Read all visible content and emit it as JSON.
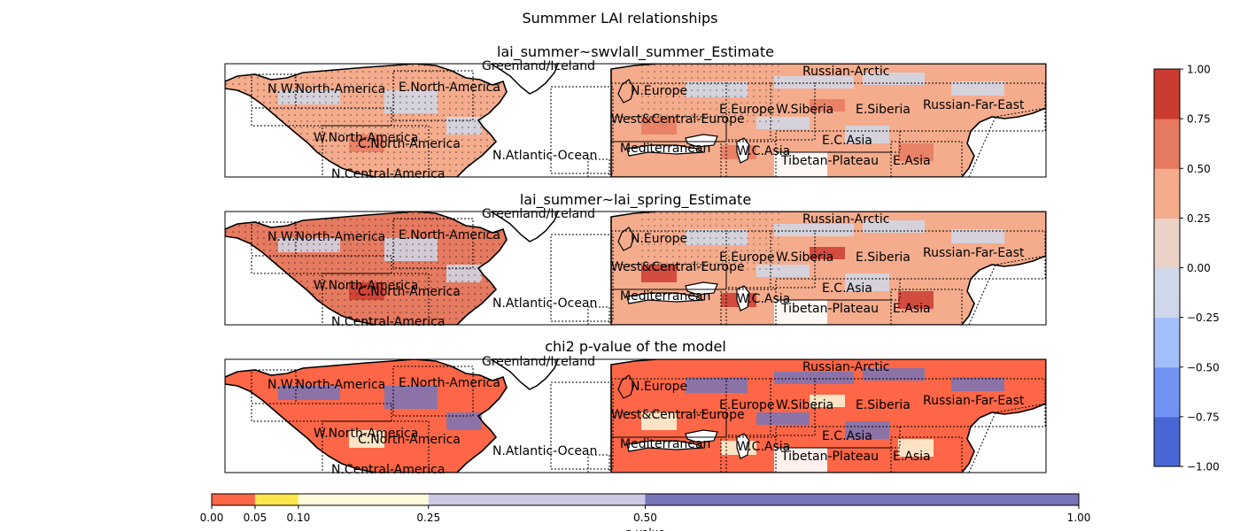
{
  "figure_title": "Summmer LAI relationships",
  "panels": [
    {
      "title": "lai_summer~swvlall_summer_Estimate",
      "kind": "estimate"
    },
    {
      "title": "lai_summer~lai_spring_Estimate",
      "kind": "estimate"
    },
    {
      "title": "chi2 p-value of the model",
      "kind": "pvalue"
    }
  ],
  "region_labels": [
    "Greenland/Iceland",
    "Russian-Arctic",
    "N.W.North-America",
    "E.North-America",
    "N.Europe",
    "E.Europe",
    "W.Siberia",
    "E.Siberia",
    "Russian-Far-East",
    "West&Central-Europe",
    "W.North-America",
    "C.North-America",
    "N.Atlantic-Ocean",
    "Mediterranean",
    "W.C.Asia",
    "E.C.Asia",
    "Tibetan-Plateau",
    "E.Asia",
    "N.Central-America"
  ],
  "chart_data": [
    {
      "type": "heatmap",
      "title": "lai_summer~swvlall_summer_Estimate",
      "colorbar": {
        "orientation": "vertical",
        "boundaries": [
          -1.0,
          -0.75,
          -0.5,
          -0.25,
          0.0,
          0.25,
          0.5,
          0.75,
          1.0
        ],
        "tick_labels": [
          "−1.00",
          "−0.75",
          "−0.50",
          "−0.25",
          "0.00",
          "0.25",
          "0.50",
          "0.75",
          "1.00"
        ],
        "colors": [
          "#4a67d6",
          "#7194f4",
          "#a3bff9",
          "#cfd8ea",
          "#ebd2c6",
          "#f5ac8d",
          "#e67a60",
          "#cb3b31"
        ]
      }
    },
    {
      "type": "heatmap",
      "title": "lai_summer~lai_spring_Estimate",
      "colorbar": "shared"
    },
    {
      "type": "heatmap",
      "title": "chi2 p-value of the model",
      "colorbar": {
        "orientation": "horizontal",
        "boundaries": [
          0.0,
          0.05,
          0.1,
          0.25,
          0.5,
          1.0
        ],
        "tick_labels": [
          "0.00",
          "0.05",
          "0.10",
          "0.25",
          "0.50",
          "1.00"
        ],
        "colors": [
          "#fd6647",
          "#fde64d",
          "#fefadc",
          "#cdc9e3",
          "#7876b8"
        ],
        "xlabel": "p-value"
      }
    }
  ]
}
